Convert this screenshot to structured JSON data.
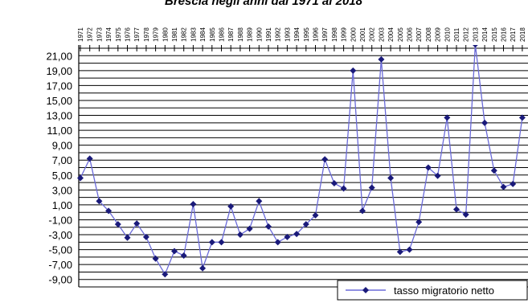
{
  "chart_data": {
    "type": "line",
    "title": "Brescia negli anni dal 1971 al 2018",
    "xlabel": "",
    "ylabel": "",
    "x": [
      "1971",
      "1972",
      "1973",
      "1974",
      "1975",
      "1976",
      "1977",
      "1978",
      "1979",
      "1980",
      "1981",
      "1982",
      "1983",
      "1984",
      "1985",
      "1986",
      "1987",
      "1988",
      "1989",
      "1990",
      "1991",
      "1992",
      "1993",
      "1994",
      "1995",
      "1996",
      "1997",
      "1998",
      "1999",
      "2000",
      "2001",
      "2002",
      "2003",
      "2004",
      "2005",
      "2006",
      "2007",
      "2008",
      "2009",
      "2010",
      "2011",
      "2012",
      "2013",
      "2014",
      "2015",
      "2016",
      "2017",
      "2018"
    ],
    "series": [
      {
        "name": "tasso migratorio netto",
        "color": "#1a1a7a",
        "values": [
          4.6,
          7.2,
          1.5,
          0.2,
          -1.6,
          -3.4,
          -1.5,
          -3.3,
          -6.2,
          -8.3,
          -5.2,
          -5.8,
          1.1,
          -7.5,
          -4.0,
          -4.0,
          0.8,
          -3.0,
          -2.2,
          1.5,
          -1.9,
          -4.0,
          -3.3,
          -2.9,
          -1.6,
          -0.4,
          7.1,
          3.9,
          3.2,
          19.0,
          0.2,
          3.3,
          20.5,
          4.6,
          -5.3,
          -5.0,
          -1.3,
          6.0,
          4.9,
          12.7,
          0.4,
          -0.3,
          22.5,
          12.0,
          5.6,
          3.4,
          3.8,
          12.7
        ]
      }
    ],
    "yticks": [
      "21,00",
      "19,00",
      "17,00",
      "15,00",
      "13,00",
      "11,00",
      "9,00",
      "7,00",
      "5,00",
      "3,00",
      "1,00",
      "-1,00",
      "-3,00",
      "-5,00",
      "-7,00",
      "-9,00"
    ],
    "ylim": [
      -10,
      22
    ],
    "grid": true,
    "legend_position": "bottom-right",
    "colors": {
      "line": "#1a1a7a",
      "marker": "#1a1a7a",
      "grid": "#000000",
      "text": "#000000"
    }
  }
}
